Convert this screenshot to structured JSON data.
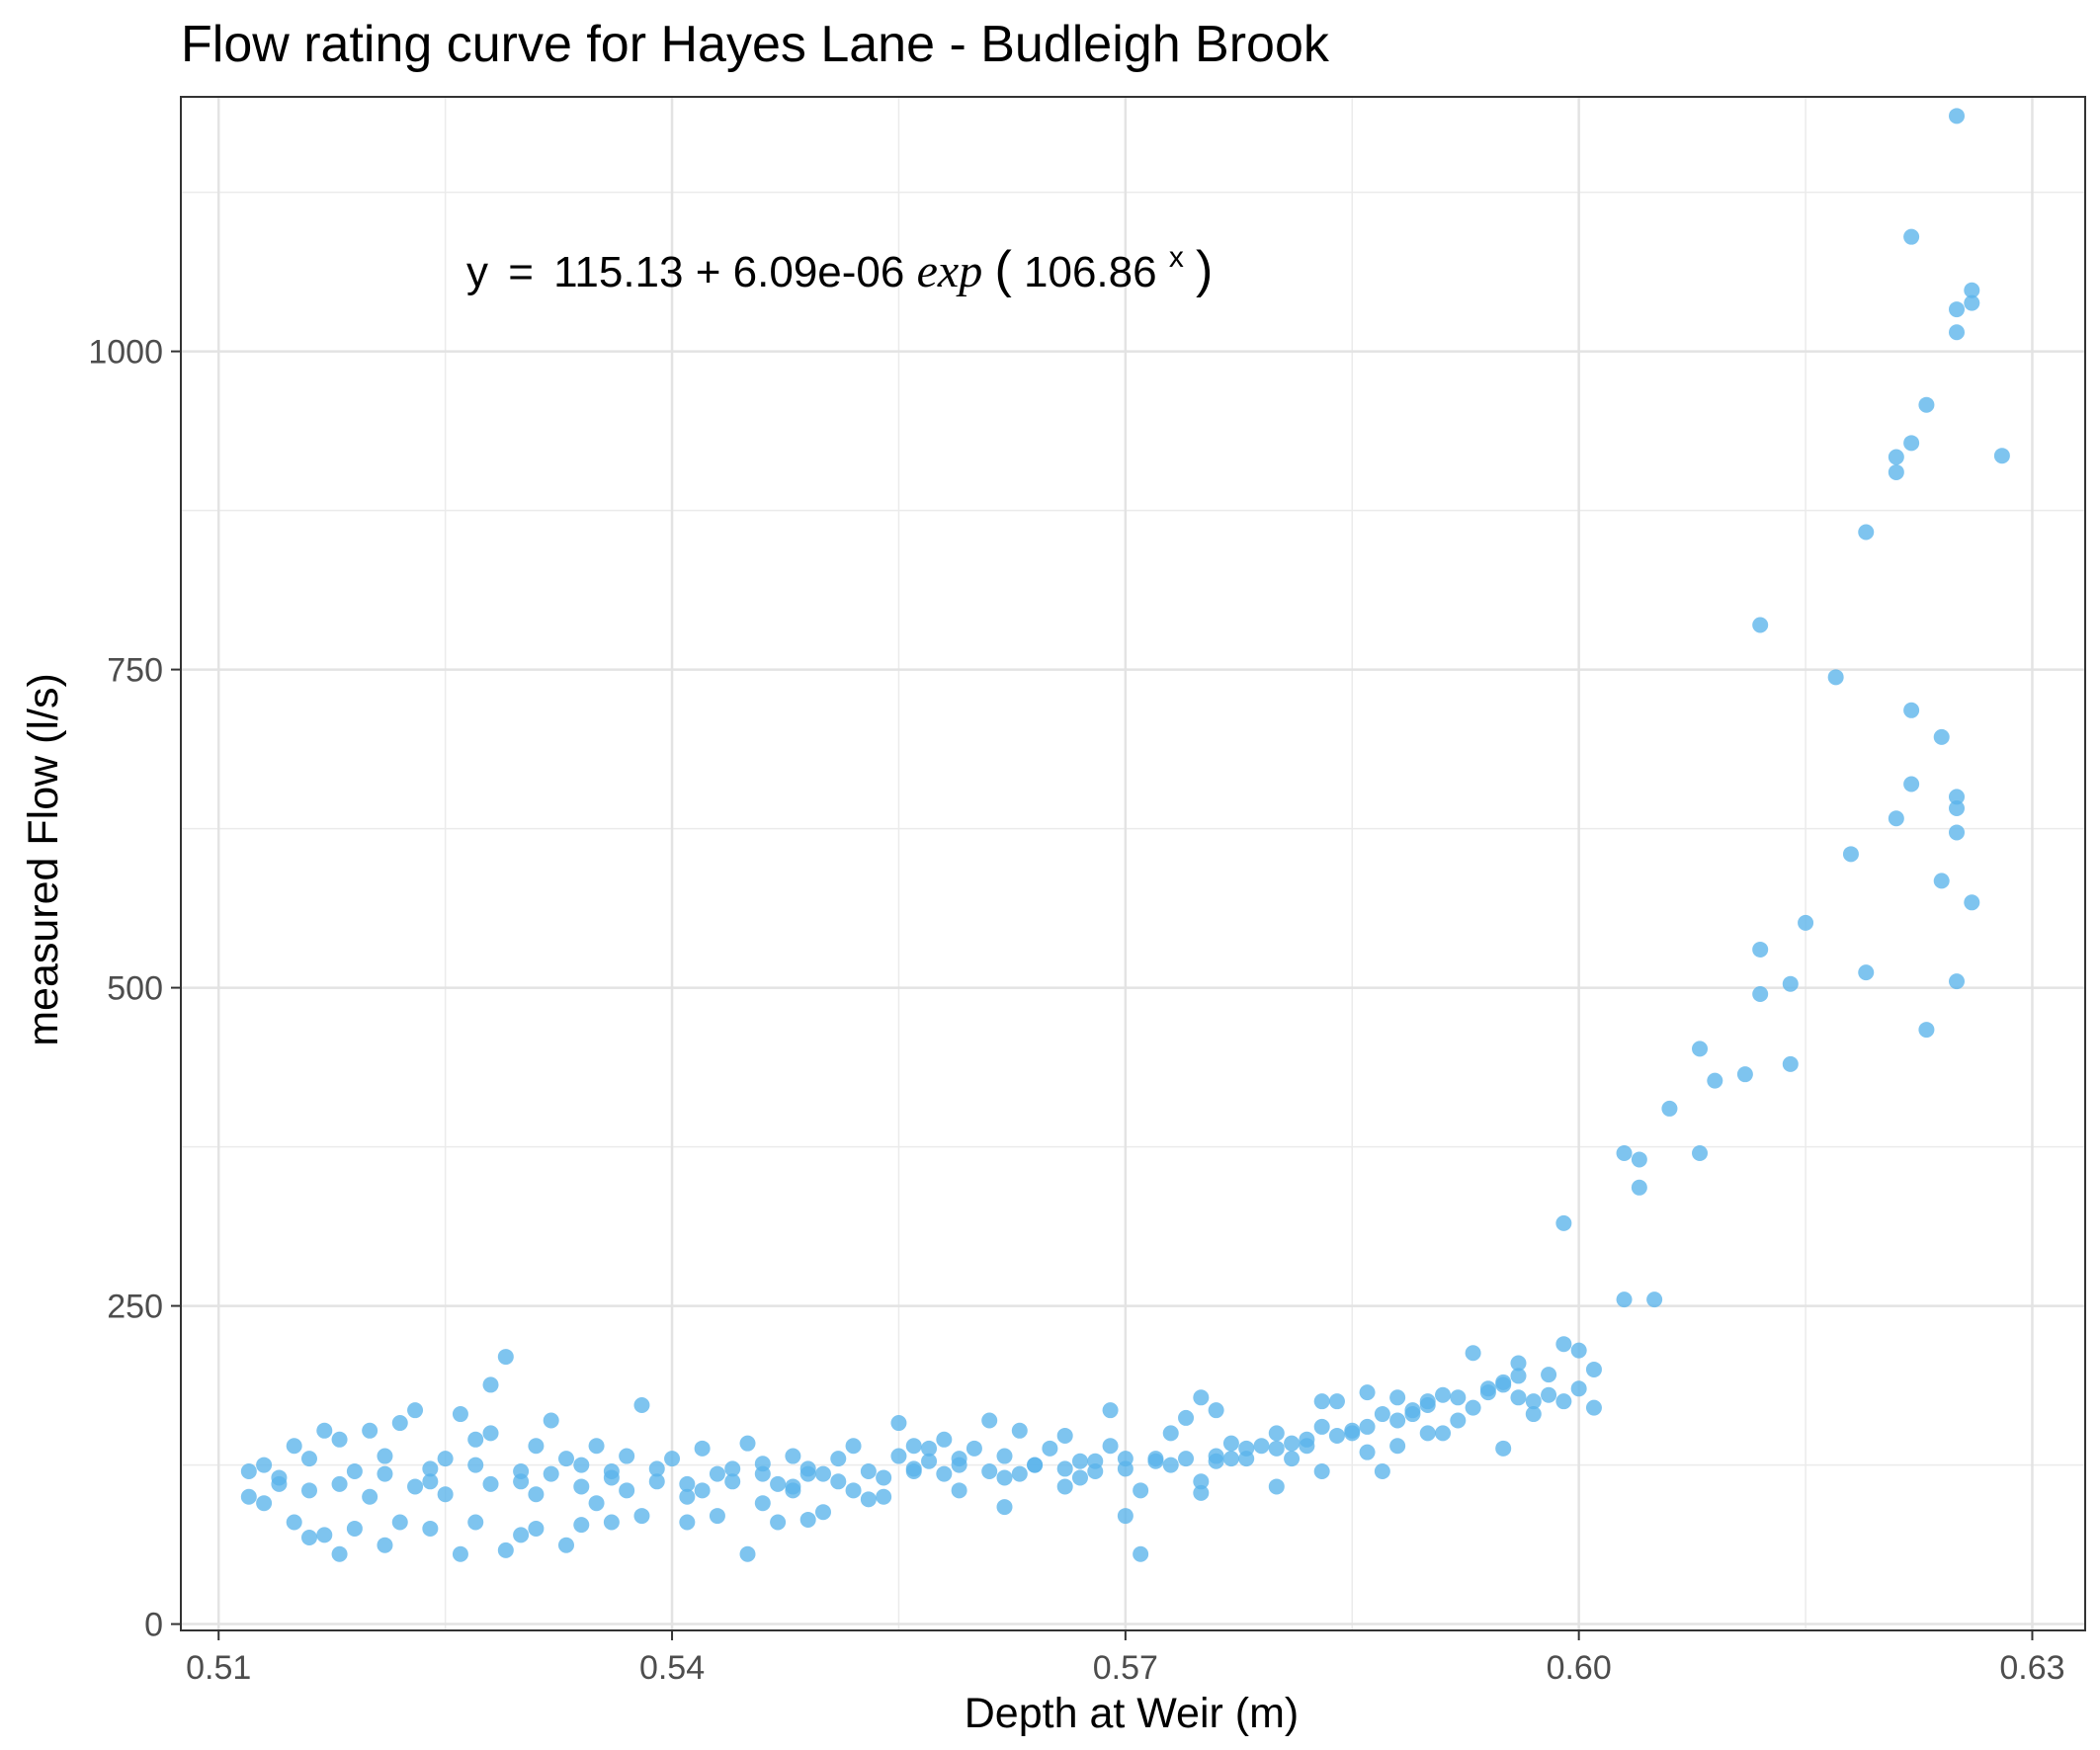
{
  "chart_data": {
    "type": "scatter",
    "title": "Flow rating curve for Hayes Lane - Budleigh Brook",
    "xlabel": "Depth at Weir (m)",
    "ylabel": "measured Flow (l/s)",
    "xlim": [
      0.5075,
      0.6335
    ],
    "ylim": [
      -5,
      1200
    ],
    "x_ticks": [
      0.51,
      0.54,
      0.57,
      0.6,
      0.63
    ],
    "x_tick_labels": [
      "0.51",
      "0.54",
      "0.57",
      "0.60",
      "0.63"
    ],
    "y_ticks": [
      0,
      250,
      500,
      750,
      1000
    ],
    "y_tick_labels": [
      "0",
      "250",
      "500",
      "750",
      "1000"
    ],
    "grid": true,
    "theme": "bw",
    "annotation": {
      "lhs": "y",
      "eq": "=",
      "intercept": "115.13",
      "plus": "+",
      "coef": "6.09e-06",
      "func": "exp",
      "lparen": "(",
      "base": "106.86",
      "exponent": "x",
      "rparen": ")"
    },
    "series": [
      {
        "type": "scatter",
        "color": "#5AB4EB",
        "points": [
          [
            0.603,
            370
          ],
          [
            0.604,
            365
          ],
          [
            0.604,
            343
          ],
          [
            0.606,
            405
          ],
          [
            0.599,
            315
          ],
          [
            0.603,
            255
          ],
          [
            0.605,
            255
          ],
          [
            0.608,
            452
          ],
          [
            0.608,
            370
          ],
          [
            0.609,
            427
          ],
          [
            0.611,
            432
          ],
          [
            0.612,
            785
          ],
          [
            0.612,
            530
          ],
          [
            0.612,
            495
          ],
          [
            0.614,
            503
          ],
          [
            0.614,
            440
          ],
          [
            0.615,
            551
          ],
          [
            0.617,
            744
          ],
          [
            0.618,
            605
          ],
          [
            0.619,
            512
          ],
          [
            0.619,
            858
          ],
          [
            0.621,
            917
          ],
          [
            0.621,
            905
          ],
          [
            0.621,
            633
          ],
          [
            0.622,
            1090
          ],
          [
            0.622,
            928
          ],
          [
            0.622,
            718
          ],
          [
            0.622,
            660
          ],
          [
            0.623,
            958
          ],
          [
            0.623,
            467
          ],
          [
            0.624,
            697
          ],
          [
            0.624,
            584
          ],
          [
            0.625,
            1185
          ],
          [
            0.625,
            1033
          ],
          [
            0.625,
            1015
          ],
          [
            0.625,
            650
          ],
          [
            0.625,
            641
          ],
          [
            0.625,
            622
          ],
          [
            0.625,
            505
          ],
          [
            0.626,
            1048
          ],
          [
            0.626,
            1038
          ],
          [
            0.626,
            567
          ],
          [
            0.628,
            918
          ],
          [
            0.601,
            200
          ],
          [
            0.6,
            215
          ],
          [
            0.599,
            220
          ],
          [
            0.6,
            185
          ],
          [
            0.599,
            175
          ],
          [
            0.601,
            170
          ],
          [
            0.598,
            180
          ],
          [
            0.597,
            175
          ],
          [
            0.596,
            178
          ],
          [
            0.596,
            205
          ],
          [
            0.595,
            190
          ],
          [
            0.597,
            165
          ],
          [
            0.595,
            138
          ],
          [
            0.594,
            185
          ],
          [
            0.593,
            170
          ],
          [
            0.592,
            160
          ],
          [
            0.593,
            213
          ],
          [
            0.591,
            180
          ],
          [
            0.591,
            150
          ],
          [
            0.59,
            175
          ],
          [
            0.59,
            150
          ],
          [
            0.589,
            165
          ],
          [
            0.588,
            178
          ],
          [
            0.588,
            140
          ],
          [
            0.587,
            165
          ],
          [
            0.586,
            182
          ],
          [
            0.586,
            135
          ],
          [
            0.587,
            120
          ],
          [
            0.585,
            150
          ],
          [
            0.584,
            175
          ],
          [
            0.583,
            155
          ],
          [
            0.583,
            175
          ],
          [
            0.582,
            140
          ],
          [
            0.583,
            120
          ],
          [
            0.58,
            150
          ],
          [
            0.581,
            130
          ],
          [
            0.58,
            108
          ],
          [
            0.579,
            140
          ],
          [
            0.578,
            130
          ],
          [
            0.577,
            142
          ],
          [
            0.576,
            168
          ],
          [
            0.576,
            128
          ],
          [
            0.575,
            112
          ],
          [
            0.575,
            103
          ],
          [
            0.575,
            178
          ],
          [
            0.574,
            162
          ],
          [
            0.573,
            150
          ],
          [
            0.572,
            130
          ],
          [
            0.571,
            105
          ],
          [
            0.57,
            130
          ],
          [
            0.57,
            85
          ],
          [
            0.571,
            55
          ],
          [
            0.569,
            168
          ],
          [
            0.569,
            140
          ],
          [
            0.568,
            128
          ],
          [
            0.567,
            115
          ],
          [
            0.566,
            108
          ],
          [
            0.566,
            148
          ],
          [
            0.565,
            138
          ],
          [
            0.564,
            125
          ],
          [
            0.563,
            152
          ],
          [
            0.562,
            132
          ],
          [
            0.562,
            115
          ],
          [
            0.562,
            92
          ],
          [
            0.561,
            160
          ],
          [
            0.56,
            138
          ],
          [
            0.559,
            105
          ],
          [
            0.559,
            130
          ],
          [
            0.558,
            145
          ],
          [
            0.557,
            128
          ],
          [
            0.557,
            138
          ],
          [
            0.556,
            140
          ],
          [
            0.556,
            120
          ],
          [
            0.555,
            158
          ],
          [
            0.555,
            132
          ],
          [
            0.554,
            100
          ],
          [
            0.553,
            98
          ],
          [
            0.552,
            105
          ],
          [
            0.552,
            140
          ],
          [
            0.551,
            130
          ],
          [
            0.55,
            88
          ],
          [
            0.55,
            118
          ],
          [
            0.549,
            122
          ],
          [
            0.548,
            105
          ],
          [
            0.548,
            132
          ],
          [
            0.547,
            110
          ],
          [
            0.546,
            126
          ],
          [
            0.546,
            95
          ],
          [
            0.545,
            142
          ],
          [
            0.544,
            122
          ],
          [
            0.543,
            118
          ],
          [
            0.542,
            138
          ],
          [
            0.541,
            100
          ],
          [
            0.54,
            130
          ],
          [
            0.539,
            112
          ],
          [
            0.538,
            172
          ],
          [
            0.537,
            132
          ],
          [
            0.536,
            120
          ],
          [
            0.535,
            140
          ],
          [
            0.535,
            95
          ],
          [
            0.534,
            125
          ],
          [
            0.533,
            130
          ],
          [
            0.532,
            160
          ],
          [
            0.531,
            140
          ],
          [
            0.53,
            112
          ],
          [
            0.529,
            210
          ],
          [
            0.528,
            188
          ],
          [
            0.528,
            150
          ],
          [
            0.527,
            145
          ],
          [
            0.526,
            165
          ],
          [
            0.525,
            130
          ],
          [
            0.524,
            112
          ],
          [
            0.523,
            168
          ],
          [
            0.522,
            158
          ],
          [
            0.521,
            132
          ],
          [
            0.52,
            152
          ],
          [
            0.519,
            120
          ],
          [
            0.518,
            145
          ],
          [
            0.517,
            152
          ],
          [
            0.516,
            130
          ],
          [
            0.515,
            140
          ],
          [
            0.514,
            110
          ],
          [
            0.513,
            125
          ],
          [
            0.512,
            120
          ],
          [
            0.545,
            55
          ],
          [
            0.526,
            55
          ],
          [
            0.518,
            55
          ],
          [
            0.529,
            58
          ],
          [
            0.533,
            62
          ],
          [
            0.521,
            62
          ],
          [
            0.516,
            68
          ],
          [
            0.512,
            100
          ],
          [
            0.513,
            95
          ],
          [
            0.515,
            80
          ],
          [
            0.517,
            70
          ],
          [
            0.519,
            75
          ],
          [
            0.522,
            80
          ],
          [
            0.524,
            75
          ],
          [
            0.527,
            80
          ],
          [
            0.53,
            70
          ],
          [
            0.531,
            75
          ],
          [
            0.534,
            78
          ],
          [
            0.536,
            80
          ],
          [
            0.538,
            85
          ],
          [
            0.541,
            80
          ],
          [
            0.543,
            85
          ],
          [
            0.547,
            80
          ],
          [
            0.549,
            82
          ],
          [
            0.514,
            115
          ],
          [
            0.516,
            105
          ],
          [
            0.518,
            110
          ],
          [
            0.52,
            100
          ],
          [
            0.521,
            118
          ],
          [
            0.523,
            108
          ],
          [
            0.524,
            122
          ],
          [
            0.525,
            102
          ],
          [
            0.527,
            125
          ],
          [
            0.528,
            110
          ],
          [
            0.53,
            120
          ],
          [
            0.531,
            102
          ],
          [
            0.532,
            118
          ],
          [
            0.534,
            108
          ],
          [
            0.536,
            115
          ],
          [
            0.537,
            105
          ],
          [
            0.539,
            122
          ],
          [
            0.541,
            110
          ],
          [
            0.542,
            105
          ],
          [
            0.544,
            112
          ],
          [
            0.546,
            118
          ],
          [
            0.548,
            108
          ],
          [
            0.549,
            118
          ],
          [
            0.551,
            112
          ],
          [
            0.553,
            120
          ],
          [
            0.554,
            115
          ],
          [
            0.556,
            122
          ],
          [
            0.558,
            118
          ],
          [
            0.559,
            125
          ],
          [
            0.561,
            120
          ],
          [
            0.563,
            118
          ],
          [
            0.564,
            125
          ],
          [
            0.566,
            122
          ],
          [
            0.567,
            128
          ],
          [
            0.568,
            120
          ],
          [
            0.57,
            122
          ],
          [
            0.572,
            128
          ],
          [
            0.573,
            125
          ],
          [
            0.574,
            130
          ],
          [
            0.576,
            132
          ],
          [
            0.577,
            130
          ],
          [
            0.578,
            138
          ],
          [
            0.58,
            138
          ],
          [
            0.581,
            142
          ],
          [
            0.582,
            145
          ],
          [
            0.584,
            148
          ],
          [
            0.585,
            152
          ],
          [
            0.586,
            155
          ],
          [
            0.588,
            160
          ],
          [
            0.589,
            168
          ],
          [
            0.59,
            172
          ],
          [
            0.592,
            178
          ],
          [
            0.594,
            182
          ],
          [
            0.595,
            188
          ],
          [
            0.596,
            195
          ],
          [
            0.598,
            196
          ]
        ]
      },
      {
        "type": "line",
        "dash": true,
        "color": "#0E2C47",
        "formula": "115.13 + 6.09e-06*exp(106.86*x)",
        "x_range": [
          0.5125,
          0.628
        ]
      }
    ]
  }
}
